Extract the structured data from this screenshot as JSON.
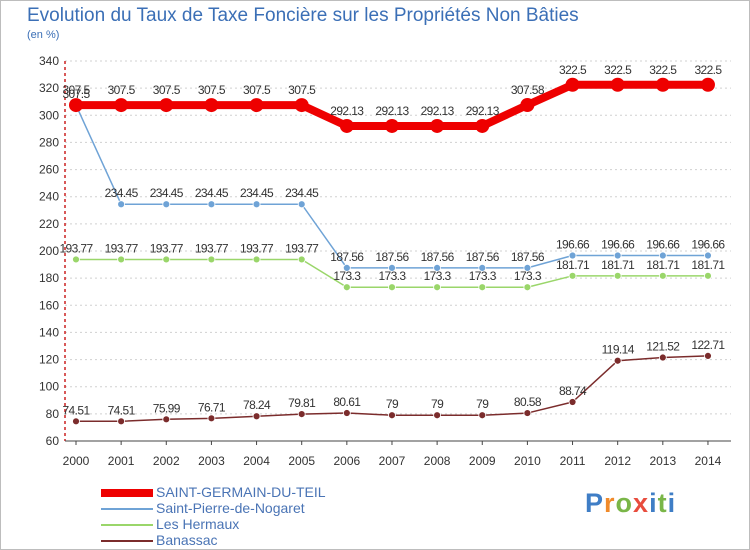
{
  "title": "Evolution du Taux de Taxe Foncière sur les Propriétés Non Bâties",
  "unit_label": "(en %)",
  "logo": {
    "text": "Proxiti",
    "colors": [
      "#3f7ec6",
      "#f08a2a",
      "#7ab648",
      "#e84c3d",
      "#3f7ec6",
      "#7ab648",
      "#3f7ec6"
    ]
  },
  "chart_data": {
    "type": "line",
    "title": "Evolution du Taux de Taxe Foncière sur les Propriétés Non Bâties",
    "ylabel": "(en %)",
    "xlabel": "",
    "ylim": [
      60,
      340
    ],
    "yticks": [
      60,
      80,
      100,
      120,
      140,
      160,
      180,
      200,
      220,
      240,
      260,
      280,
      300,
      320,
      340
    ],
    "grid": "horizontal-dotted",
    "legend": "bottom-left",
    "x": [
      "2000",
      "2001",
      "2002",
      "2003",
      "2004",
      "2005",
      "2006",
      "2007",
      "2008",
      "2009",
      "2010",
      "2011",
      "2012",
      "2013",
      "2014"
    ],
    "series": [
      {
        "name": "SAINT-GERMAIN-DU-TEIL",
        "color": "#ee0000",
        "thick": true,
        "values": [
          307.5,
          307.5,
          307.5,
          307.5,
          307.5,
          307.5,
          292.13,
          292.13,
          292.13,
          292.13,
          307.58,
          322.5,
          322.5,
          322.5,
          322.5
        ],
        "labels": [
          "307.5",
          "307.5",
          "307.5",
          "307.5",
          "307.5",
          "307.5",
          "292.13",
          "292.13",
          "292.13",
          "292.13",
          "307.58",
          "322.5",
          "322.5",
          "322.5",
          "322.5"
        ]
      },
      {
        "name": "Saint-Pierre-de-Nogaret",
        "color": "#6fa3d6",
        "thick": false,
        "values": [
          307.5,
          234.45,
          234.45,
          234.45,
          234.45,
          234.45,
          187.56,
          187.56,
          187.56,
          187.56,
          187.56,
          196.66,
          196.66,
          196.66,
          196.66
        ],
        "labels": [
          "307.5",
          "234.45",
          "234.45",
          "234.45",
          "234.45",
          "234.45",
          "187.56",
          "187.56",
          "187.56",
          "187.56",
          "187.56",
          "196.66",
          "196.66",
          "196.66",
          "196.66"
        ]
      },
      {
        "name": "Les Hermaux",
        "color": "#9ad66a",
        "thick": false,
        "values": [
          193.77,
          193.77,
          193.77,
          193.77,
          193.77,
          193.77,
          173.3,
          173.3,
          173.3,
          173.3,
          173.3,
          181.71,
          181.71,
          181.71,
          181.71
        ],
        "labels": [
          "193.77",
          "193.77",
          "193.77",
          "193.77",
          "193.77",
          "193.77",
          "173.3",
          "173.3",
          "173.3",
          "173.3",
          "173.3",
          "181.71",
          "181.71",
          "181.71",
          "181.71"
        ]
      },
      {
        "name": "Banassac",
        "color": "#7b2c2c",
        "thick": false,
        "values": [
          74.51,
          74.51,
          75.99,
          76.71,
          78.24,
          79.81,
          80.61,
          79,
          79,
          79,
          80.58,
          88.74,
          119.14,
          121.52,
          122.71
        ],
        "labels": [
          "74.51",
          "74.51",
          "75.99",
          "76.71",
          "78.24",
          "79.81",
          "80.61",
          "79",
          "79",
          "79",
          "80.58",
          "88.74",
          "119.14",
          "121.52",
          "122.71"
        ]
      }
    ]
  }
}
